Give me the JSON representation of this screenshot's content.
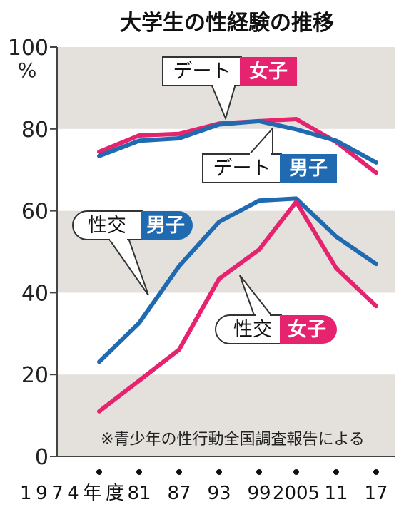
{
  "chart_data": {
    "type": "line",
    "title": "大学生の性経験の推移",
    "unit": "%",
    "note": "※青少年の性行動全国調査報告による",
    "x_labels": [
      "1974年度",
      "81",
      "87",
      "93",
      "99",
      "2005",
      "11",
      "17"
    ],
    "ylim": [
      0,
      100
    ],
    "y_ticks": [
      0,
      20,
      40,
      60,
      80,
      100
    ],
    "grid": "alternating horizontal bands",
    "series": [
      {
        "key": "date_female",
        "tag": "デート",
        "group": "女子",
        "color": "#e6236e",
        "values": [
          74.4,
          78.4,
          78.8,
          81.3,
          81.9,
          82.4,
          76.8,
          69.3
        ]
      },
      {
        "key": "date_male",
        "tag": "デート",
        "group": "男子",
        "color": "#1f6ab1",
        "values": [
          73.4,
          77.1,
          77.7,
          81.1,
          81.9,
          79.9,
          77.1,
          71.8
        ]
      },
      {
        "key": "sex_male",
        "tag": "性交",
        "group": "男子",
        "color": "#1f6ab1",
        "values": [
          23.1,
          32.6,
          46.5,
          57.3,
          62.5,
          63.0,
          53.7,
          47.0
        ]
      },
      {
        "key": "sex_female",
        "tag": "性交",
        "group": "女子",
        "color": "#e6236e",
        "values": [
          11.0,
          18.5,
          26.1,
          43.4,
          50.5,
          62.2,
          46.0,
          36.7
        ]
      }
    ]
  }
}
